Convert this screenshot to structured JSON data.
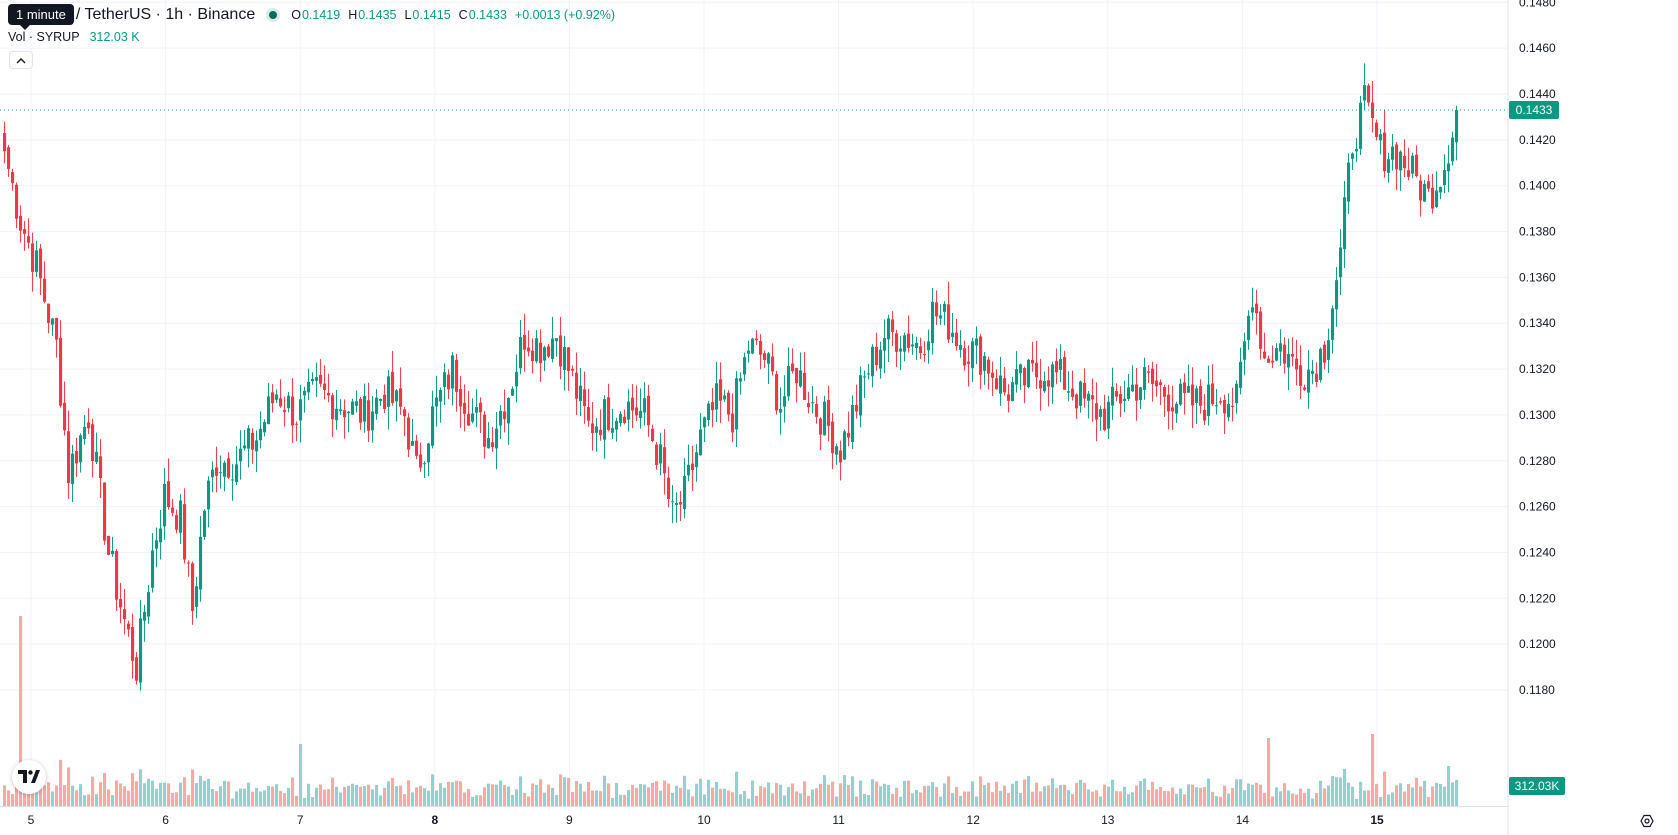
{
  "legend": {
    "tooltip": "1 minute",
    "symbol": "/ TetherUS · 1h · Binance",
    "open_label": "O",
    "open": "0.1419",
    "high_label": "H",
    "high": "0.1435",
    "low_label": "L",
    "low": "0.1415",
    "close_label": "C",
    "close": "0.1433",
    "change": "+0.0013 (+0.92%)"
  },
  "volume": {
    "label": "Vol · SYRUP",
    "value": "312.03 K"
  },
  "colors": {
    "up": "#089981",
    "down": "#f23645",
    "vol_up": "#92d2cc",
    "vol_down": "#f7a9a7",
    "grid": "#f0f3fa"
  },
  "icons": {
    "collapse": "chevron-up-icon",
    "logo": "tradingview-logo",
    "settings": "gear-icon"
  },
  "chart_data": {
    "type": "candlestick",
    "interval": "1h",
    "y_axis": {
      "min": 0.1166,
      "max": 0.1481,
      "ticks": [
        "0.1480",
        "0.1460",
        "0.1440",
        "0.1420",
        "0.1400",
        "0.1380",
        "0.1360",
        "0.1340",
        "0.1320",
        "0.1300",
        "0.1280",
        "0.1260",
        "0.1240",
        "0.1220",
        "0.1200",
        "0.1180"
      ],
      "position": "right"
    },
    "x_axis": {
      "labels": [
        {
          "text": "5",
          "bold": false
        },
        {
          "text": "6",
          "bold": false
        },
        {
          "text": "7",
          "bold": false
        },
        {
          "text": "8",
          "bold": true
        },
        {
          "text": "9",
          "bold": false
        },
        {
          "text": "10",
          "bold": false
        },
        {
          "text": "11",
          "bold": false
        },
        {
          "text": "12",
          "bold": false
        },
        {
          "text": "13",
          "bold": false
        },
        {
          "text": "14",
          "bold": false
        },
        {
          "text": "15",
          "bold": true
        }
      ]
    },
    "last_price": "0.1433",
    "last_price_value": 0.1433,
    "last_volume": "312.03K",
    "grid": true,
    "anchors": [
      [
        0,
        0.1415
      ],
      [
        4,
        0.1385
      ],
      [
        8,
        0.1365
      ],
      [
        13,
        0.133
      ],
      [
        16,
        0.1275
      ],
      [
        21,
        0.13
      ],
      [
        26,
        0.124
      ],
      [
        30,
        0.121
      ],
      [
        33,
        0.119
      ],
      [
        37,
        0.124
      ],
      [
        40,
        0.1265
      ],
      [
        44,
        0.1255
      ],
      [
        47,
        0.1215
      ],
      [
        50,
        0.126
      ],
      [
        53,
        0.128
      ],
      [
        58,
        0.128
      ],
      [
        63,
        0.129
      ],
      [
        68,
        0.131
      ],
      [
        73,
        0.13
      ],
      [
        78,
        0.131
      ],
      [
        84,
        0.1305
      ],
      [
        90,
        0.13
      ],
      [
        95,
        0.131
      ],
      [
        100,
        0.13
      ],
      [
        103,
        0.1275
      ],
      [
        107,
        0.13
      ],
      [
        112,
        0.132
      ],
      [
        117,
        0.13
      ],
      [
        121,
        0.129
      ],
      [
        126,
        0.131
      ],
      [
        130,
        0.1335
      ],
      [
        134,
        0.133
      ],
      [
        138,
        0.1335
      ],
      [
        142,
        0.1315
      ],
      [
        146,
        0.1295
      ],
      [
        150,
        0.13
      ],
      [
        155,
        0.1305
      ],
      [
        160,
        0.13
      ],
      [
        164,
        0.128
      ],
      [
        167,
        0.1255
      ],
      [
        170,
        0.1265
      ],
      [
        174,
        0.129
      ],
      [
        178,
        0.1305
      ],
      [
        182,
        0.13
      ],
      [
        186,
        0.133
      ],
      [
        190,
        0.1325
      ],
      [
        194,
        0.1305
      ],
      [
        198,
        0.132
      ],
      [
        202,
        0.1305
      ],
      [
        206,
        0.1295
      ],
      [
        209,
        0.1285
      ],
      [
        212,
        0.13
      ],
      [
        216,
        0.132
      ],
      [
        220,
        0.1335
      ],
      [
        225,
        0.1335
      ],
      [
        229,
        0.133
      ],
      [
        232,
        0.1345
      ],
      [
        236,
        0.134
      ],
      [
        240,
        0.133
      ],
      [
        245,
        0.1325
      ],
      [
        250,
        0.131
      ],
      [
        255,
        0.1315
      ],
      [
        260,
        0.132
      ],
      [
        265,
        0.1315
      ],
      [
        270,
        0.1305
      ],
      [
        275,
        0.13
      ],
      [
        280,
        0.131
      ],
      [
        285,
        0.1315
      ],
      [
        290,
        0.131
      ],
      [
        295,
        0.1305
      ],
      [
        300,
        0.1305
      ],
      [
        304,
        0.131
      ],
      [
        308,
        0.1305
      ],
      [
        312,
        0.1355
      ],
      [
        315,
        0.1325
      ],
      [
        319,
        0.133
      ],
      [
        323,
        0.132
      ],
      [
        327,
        0.132
      ],
      [
        330,
        0.133
      ],
      [
        334,
        0.137
      ],
      [
        337,
        0.142
      ],
      [
        340,
        0.1435
      ],
      [
        344,
        0.1415
      ],
      [
        348,
        0.1415
      ],
      [
        352,
        0.1405
      ],
      [
        356,
        0.1395
      ],
      [
        360,
        0.141
      ],
      [
        363,
        0.1433
      ]
    ],
    "volume_series": {
      "spike_value": "312.03K"
    }
  }
}
